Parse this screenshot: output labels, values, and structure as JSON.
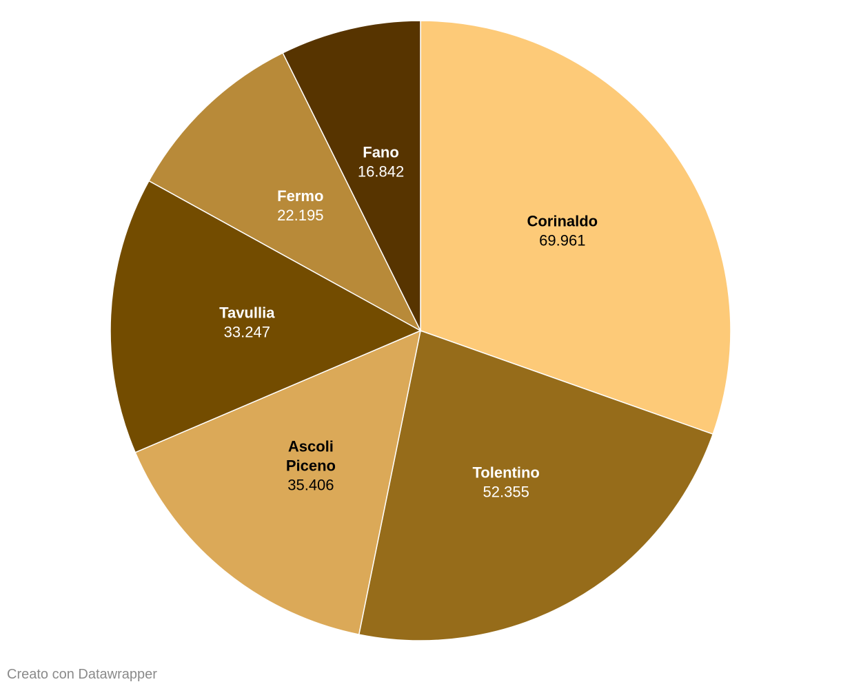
{
  "chart_data": {
    "type": "pie",
    "slices": [
      {
        "label": "Corinaldo",
        "value": 69961,
        "value_label": "69.961",
        "color": "#fdca78",
        "text_color": "#000000"
      },
      {
        "label": "Tolentino",
        "value": 52355,
        "value_label": "52.355",
        "color": "#966c1a",
        "text_color": "#ffffff"
      },
      {
        "label": "Ascoli Piceno",
        "label_lines": [
          "Ascoli",
          "Piceno"
        ],
        "value": 35406,
        "value_label": "35.406",
        "color": "#dba958",
        "text_color": "#000000"
      },
      {
        "label": "Tavullia",
        "value": 33247,
        "value_label": "33.247",
        "color": "#734c00",
        "text_color": "#ffffff"
      },
      {
        "label": "Fermo",
        "value": 22195,
        "value_label": "22.195",
        "color": "#b88a39",
        "text_color": "#ffffff"
      },
      {
        "label": "Fano",
        "value": 16842,
        "value_label": "16.842",
        "color": "#573400",
        "text_color": "#ffffff"
      }
    ],
    "start_angle": "12 o'clock",
    "direction": "clockwise"
  },
  "footer": {
    "credit": "Creato con Datawrapper"
  }
}
